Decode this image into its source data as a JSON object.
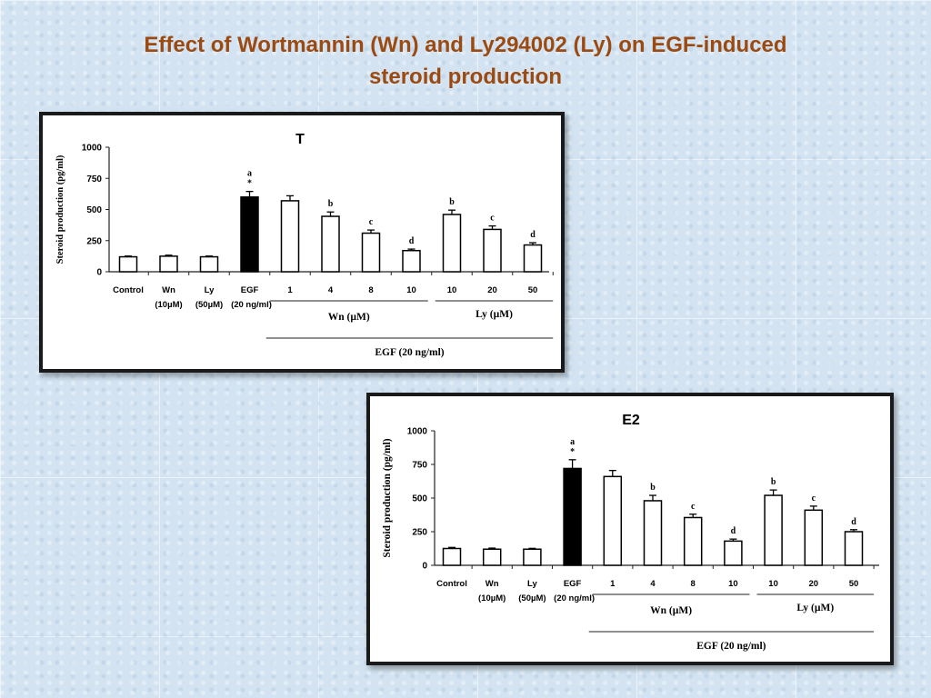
{
  "slide": {
    "title_line1": "Effect of Wortmannin (Wn) and Ly294002 (Ly) on EGF-induced",
    "title_line2": "steroid production"
  },
  "colors": {
    "title": "#9b4a12",
    "egf_bar": "#000000",
    "bar_fill": "#ffffff"
  },
  "chart_data": [
    {
      "type": "bar",
      "title": "T",
      "ylabel": "Steroid production (pg/ml)",
      "ylim": [
        0,
        1000
      ],
      "yticks": [
        "0",
        "250",
        "500",
        "750",
        "1000"
      ],
      "categories": [
        {
          "l1": "Control",
          "l2": ""
        },
        {
          "l1": "Wn",
          "l2": "(10µM)"
        },
        {
          "l1": "Ly",
          "l2": "(50µM)"
        },
        {
          "l1": "EGF",
          "l2": "(20 ng/ml)"
        },
        {
          "l1": "1",
          "l2": ""
        },
        {
          "l1": "4",
          "l2": ""
        },
        {
          "l1": "8",
          "l2": ""
        },
        {
          "l1": "10",
          "l2": ""
        },
        {
          "l1": "10",
          "l2": ""
        },
        {
          "l1": "20",
          "l2": ""
        },
        {
          "l1": "50",
          "l2": ""
        }
      ],
      "values": [
        120,
        125,
        120,
        600,
        570,
        445,
        310,
        170,
        460,
        340,
        215
      ],
      "errors": [
        6,
        8,
        6,
        45,
        40,
        35,
        25,
        12,
        35,
        28,
        18
      ],
      "annotations": [
        "",
        "",
        "",
        "a\n*",
        "",
        "b",
        "c",
        "d",
        "b",
        "c",
        "d"
      ],
      "highlight_index": 3,
      "group_labels": {
        "wn": "Wn (µM)",
        "ly": "Ly (µM)",
        "egf": "EGF (20 ng/ml)"
      }
    },
    {
      "type": "bar",
      "title": "E2",
      "ylabel": "Steroid production (pg/ml)",
      "ylim": [
        0,
        1000
      ],
      "yticks": [
        "0",
        "250",
        "500",
        "750",
        "1000"
      ],
      "categories": [
        {
          "l1": "Control",
          "l2": ""
        },
        {
          "l1": "Wn",
          "l2": "(10µM)"
        },
        {
          "l1": "Ly",
          "l2": "(50µM)"
        },
        {
          "l1": "EGF",
          "l2": "(20 ng/ml)"
        },
        {
          "l1": "1",
          "l2": ""
        },
        {
          "l1": "4",
          "l2": ""
        },
        {
          "l1": "8",
          "l2": ""
        },
        {
          "l1": "10",
          "l2": ""
        },
        {
          "l1": "10",
          "l2": ""
        },
        {
          "l1": "20",
          "l2": ""
        },
        {
          "l1": "50",
          "l2": ""
        }
      ],
      "values": [
        125,
        120,
        120,
        720,
        660,
        480,
        355,
        180,
        520,
        410,
        250
      ],
      "errors": [
        8,
        8,
        6,
        65,
        45,
        40,
        25,
        15,
        40,
        30,
        15
      ],
      "annotations": [
        "",
        "",
        "",
        "a\n*",
        "",
        "b",
        "c",
        "d",
        "b",
        "c",
        "d"
      ],
      "highlight_index": 3,
      "group_labels": {
        "wn": "Wn (µM)",
        "ly": "Ly (µM)",
        "egf": "EGF (20 ng/ml)"
      }
    }
  ]
}
